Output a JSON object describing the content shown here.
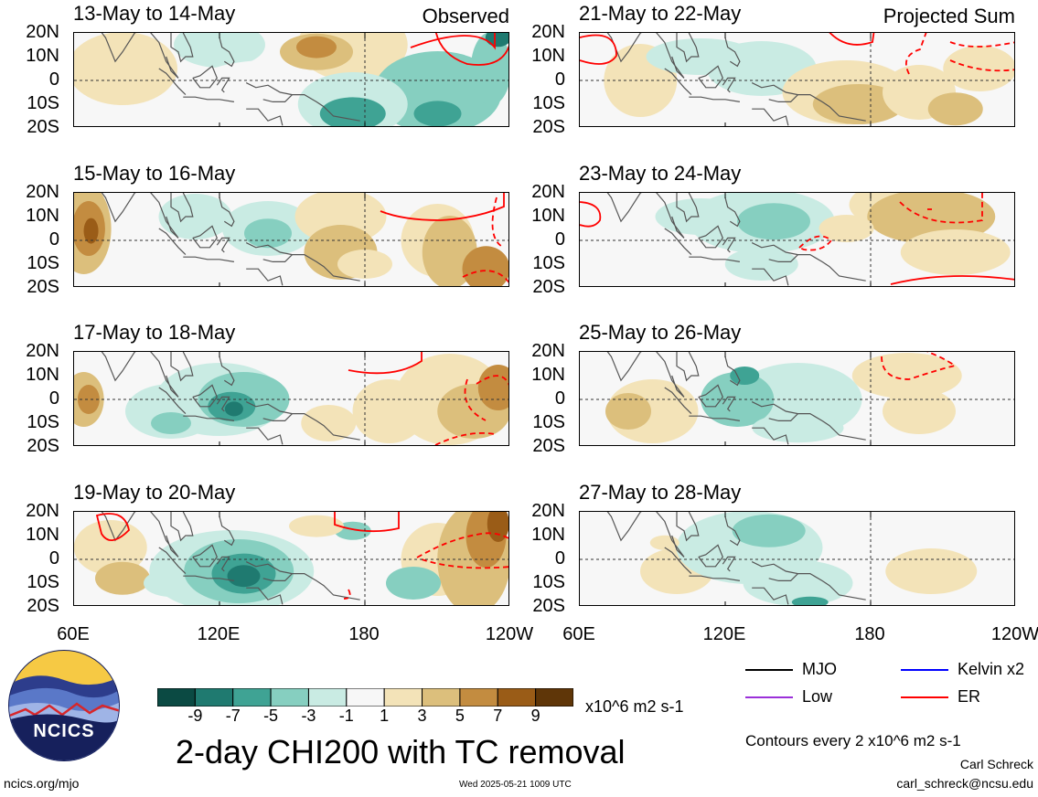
{
  "chart_data": {
    "type": "heatmap",
    "title": "2-day CHI200 with TC removal",
    "units": "x10^6 m2 s-1",
    "columns": [
      {
        "tag": "Observed",
        "panels": [
          {
            "title": "13-May to 14-May"
          },
          {
            "title": "15-May to 16-May"
          },
          {
            "title": "17-May to 18-May"
          },
          {
            "title": "19-May to 20-May"
          }
        ]
      },
      {
        "tag": "Projected Sum",
        "panels": [
          {
            "title": "21-May to 22-May"
          },
          {
            "title": "23-May to 24-May"
          },
          {
            "title": "25-May to 26-May"
          },
          {
            "title": "27-May to 28-May"
          }
        ]
      }
    ],
    "y_ticks": [
      "20N",
      "10N",
      "0",
      "10S",
      "20S"
    ],
    "y_range_deg": [
      -20,
      20
    ],
    "x_ticks": [
      "60E",
      "120E",
      "180",
      "120W"
    ],
    "x_range_deg": [
      60,
      240
    ],
    "colorbar": {
      "ticks": [
        "-9",
        "-7",
        "-5",
        "-3",
        "-1",
        "1",
        "3",
        "5",
        "7",
        "9"
      ],
      "colors": [
        "#0b4a43",
        "#1f7a70",
        "#3fa394",
        "#86cfc0",
        "#c9ebe3",
        "#f7f7f7",
        "#f3e3b8",
        "#dcbf7c",
        "#c38c40",
        "#9a5c17",
        "#5f3608"
      ]
    },
    "legend": [
      {
        "label": "MJO",
        "color": "#000000"
      },
      {
        "label": "Kelvin x2",
        "color": "#0000ff"
      },
      {
        "label": "Low",
        "color": "#9b30d9"
      },
      {
        "label": "ER",
        "color": "#ff0000"
      }
    ]
  },
  "footer": {
    "contours_note": "Contours every 2 x10^6 m2 s-1",
    "author": "Carl Schreck",
    "email": "carl_schreck@ncsu.edu",
    "site": "ncics.org/mjo",
    "timestamp": "Wed 2025-05-21 1009 UTC",
    "logo_text": "NCICS"
  }
}
